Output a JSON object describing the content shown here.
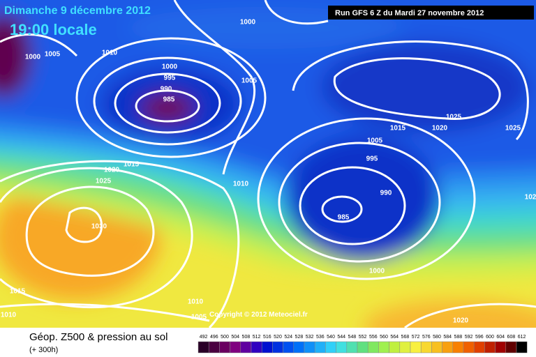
{
  "header": {
    "date": "Dimanche 9 décembre 2012",
    "time": "19:00 locale",
    "run": "Run GFS 6 Z du Mardi 27 novembre 2012"
  },
  "isobars": [
    "1000",
    "1000",
    "1005",
    "1010",
    "1000",
    "995",
    "990",
    "985",
    "1005",
    "1015",
    "1020",
    "1025",
    "1025",
    "1005",
    "995",
    "1015",
    "1020",
    "1025",
    "1010",
    "990",
    "985",
    "1030",
    "1000",
    "1015",
    "1010",
    "1010",
    "1005",
    "1020",
    "102"
  ],
  "copyright": "Copyright © 2012 Meteociel.fr",
  "legend": {
    "title": "Géop. Z500 & pression au sol",
    "lead": "(+ 300h)",
    "values": [
      492,
      496,
      500,
      504,
      508,
      512,
      516,
      520,
      524,
      528,
      532,
      536,
      540,
      544,
      548,
      552,
      556,
      560,
      564,
      568,
      572,
      576,
      580,
      584,
      588,
      592,
      596,
      600,
      604,
      608,
      612
    ],
    "colors": [
      "#2a0028",
      "#4a0040",
      "#6a0060",
      "#800080",
      "#6000a0",
      "#3000c0",
      "#0010d0",
      "#0030e0",
      "#0050f0",
      "#0070f8",
      "#1090f8",
      "#20b0f8",
      "#30d0f8",
      "#40e0e0",
      "#50e0b0",
      "#60e080",
      "#80e860",
      "#a0f050",
      "#c0f040",
      "#e0f040",
      "#f8f040",
      "#f8d830",
      "#f8c020",
      "#f8a010",
      "#f88000",
      "#f06000",
      "#e04000",
      "#c02000",
      "#a00000",
      "#600000",
      "#000000"
    ]
  }
}
